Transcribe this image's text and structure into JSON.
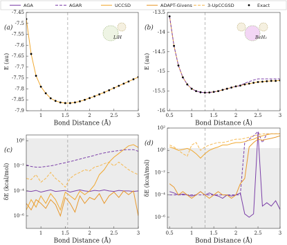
{
  "legend": [
    {
      "name": "AGA",
      "color": "#7b3fa8",
      "dash": false
    },
    {
      "name": "AGAR",
      "color": "#7b3fa8",
      "dash": true
    },
    {
      "name": "UCCSD",
      "color": "#f0a830",
      "dash": false
    },
    {
      "name": "ADAPT-Givens",
      "color": "#e8982a",
      "dash": false
    },
    {
      "name": "3-UpCCGSD",
      "color": "#f5b850",
      "dash": true
    },
    {
      "name": "Exact",
      "color": "#000000",
      "marker": true
    }
  ],
  "chart_data": [
    {
      "type": "line",
      "panel": "(a)",
      "annotation": "LiH",
      "ylabel": "E (au)",
      "xlabel": "Bond Distance (Å)",
      "log": false,
      "vline": 1.55,
      "xlim": [
        0.7,
        3
      ],
      "xticks": [
        1,
        1.5,
        2,
        2.5,
        3
      ],
      "ylim": [
        -7.9,
        -7.45
      ],
      "yticks": [
        -7.9,
        -7.85,
        -7.8,
        -7.75,
        -7.7,
        -7.65,
        -7.6,
        -7.55,
        -7.5,
        -7.45
      ],
      "x": [
        0.7,
        0.8,
        0.9,
        1.0,
        1.1,
        1.2,
        1.3,
        1.4,
        1.5,
        1.6,
        1.7,
        1.8,
        1.9,
        2.0,
        2.1,
        2.2,
        2.3,
        2.4,
        2.5,
        2.6,
        2.7,
        2.8,
        2.9,
        3.0
      ],
      "series": [
        {
          "name": "UCCSD",
          "color": "#f0a830",
          "dash": false,
          "values": [
            -7.48,
            -7.64,
            -7.74,
            -7.79,
            -7.82,
            -7.843,
            -7.855,
            -7.862,
            -7.865,
            -7.865,
            -7.862,
            -7.857,
            -7.85,
            -7.842,
            -7.834,
            -7.825,
            -7.816,
            -7.806,
            -7.796,
            -7.786,
            -7.776,
            -7.766,
            -7.756,
            -7.746
          ]
        },
        {
          "name": "Exact",
          "color": "#000000",
          "marker": true,
          "values": [
            -7.48,
            -7.64,
            -7.74,
            -7.79,
            -7.82,
            -7.843,
            -7.855,
            -7.862,
            -7.865,
            -7.865,
            -7.862,
            -7.857,
            -7.85,
            -7.842,
            -7.834,
            -7.825,
            -7.816,
            -7.806,
            -7.796,
            -7.786,
            -7.776,
            -7.766,
            -7.756,
            -7.746
          ]
        }
      ]
    },
    {
      "type": "line",
      "panel": "(b)",
      "annotation": "BeH₂",
      "ylabel": "E (au)",
      "xlabel": "Bond Distance (Å)",
      "log": false,
      "vline": 1.3,
      "xlim": [
        0.45,
        3
      ],
      "xticks": [
        0.5,
        1,
        1.5,
        2,
        2.5,
        3
      ],
      "ylim": [
        -16,
        -13.5
      ],
      "yticks": [
        -16,
        -15.5,
        -15,
        -14.5,
        -14,
        -13.5
      ],
      "x": [
        0.5,
        0.6,
        0.7,
        0.8,
        0.9,
        1.0,
        1.1,
        1.2,
        1.3,
        1.4,
        1.5,
        1.6,
        1.7,
        1.8,
        1.9,
        2.0,
        2.1,
        2.2,
        2.3,
        2.4,
        2.5,
        2.6,
        2.7,
        2.8,
        2.9,
        3.0
      ],
      "series": [
        {
          "name": "UCCSD",
          "color": "#f0a830",
          "dash": false,
          "values": [
            -13.6,
            -14.35,
            -14.85,
            -15.15,
            -15.33,
            -15.44,
            -15.5,
            -15.53,
            -15.54,
            -15.535,
            -15.52,
            -15.5,
            -15.47,
            -15.44,
            -15.41,
            -15.38,
            -15.36,
            -15.33,
            -15.31,
            -15.29,
            -15.27,
            -15.26,
            -15.25,
            -15.24,
            -15.24,
            -15.23
          ]
        },
        {
          "name": "AGAR",
          "color": "#7b3fa8",
          "dash": true,
          "values": [
            -13.6,
            -14.35,
            -14.85,
            -15.15,
            -15.33,
            -15.44,
            -15.5,
            -15.53,
            -15.54,
            -15.535,
            -15.52,
            -15.5,
            -15.47,
            -15.44,
            -15.41,
            -15.38,
            -15.36,
            -15.3,
            -15.26,
            -15.22,
            -15.19,
            -15.19,
            -15.19,
            -15.19,
            -15.19,
            -15.19
          ]
        },
        {
          "name": "Exact",
          "color": "#000000",
          "marker": true,
          "values": [
            -13.6,
            -14.35,
            -14.85,
            -15.15,
            -15.33,
            -15.44,
            -15.5,
            -15.53,
            -15.54,
            -15.535,
            -15.52,
            -15.5,
            -15.47,
            -15.44,
            -15.41,
            -15.38,
            -15.36,
            -15.33,
            -15.31,
            -15.29,
            -15.27,
            -15.26,
            -15.25,
            -15.24,
            -15.24,
            -15.23
          ]
        }
      ]
    },
    {
      "type": "line",
      "panel": "(c)",
      "ylabel": "δE (kcal/mol)",
      "xlabel": "Bond Distance (Å)",
      "log": true,
      "vline": 1.55,
      "shade_below": 1.6,
      "xlim": [
        0.7,
        3
      ],
      "xticks": [
        1,
        1.5,
        2,
        2.5,
        3
      ],
      "ylim": [
        1e-07,
        3
      ],
      "yticks": [
        {
          "value": 1e-06,
          "label": "10⁻⁶"
        },
        {
          "value": 0.0001,
          "label": "10⁻⁴"
        },
        {
          "value": 0.01,
          "label": "10⁻²"
        },
        {
          "value": 1,
          "label": "10⁰"
        }
      ],
      "x": [
        0.7,
        0.8,
        0.9,
        1.0,
        1.1,
        1.2,
        1.3,
        1.4,
        1.5,
        1.6,
        1.7,
        1.8,
        1.9,
        2.0,
        2.1,
        2.2,
        2.3,
        2.4,
        2.5,
        2.6,
        2.7,
        2.8,
        2.9,
        3.0
      ],
      "series": [
        {
          "name": "AGA",
          "color": "#7b3fa8",
          "dash": false,
          "values": [
            0.0001,
            9e-05,
            0.00011,
            8e-05,
            0.0001,
            0.00012,
            9e-05,
            0.0001,
            0.00011,
            8e-05,
            0.0001,
            0.00012,
            0.0001,
            9e-05,
            0.00011,
            0.0001,
            0.00012,
            0.0001,
            9e-05,
            0.00011,
            0.0001,
            0.0001,
            9e-05,
            0.0001
          ]
        },
        {
          "name": "AGAR",
          "color": "#7b3fa8",
          "dash": true,
          "values": [
            0.012,
            0.009,
            0.008,
            0.008,
            0.009,
            0.01,
            0.012,
            0.015,
            0.018,
            0.022,
            0.028,
            0.035,
            0.045,
            0.055,
            0.07,
            0.09,
            0.11,
            0.13,
            0.15,
            0.17,
            0.19,
            0.2,
            0.2,
            0.15
          ]
        },
        {
          "name": "UCCSD",
          "color": "#f0a830",
          "dash": false,
          "values": [
            3e-06,
            2e-05,
            5e-06,
            4e-05,
            1e-05,
            6e-05,
            2e-05,
            3e-06,
            8e-05,
            4e-05,
            2e-05,
            0.0001,
            5e-05,
            0.0001,
            0.0003,
            0.002,
            0.005,
            0.02,
            0.05,
            0.1,
            0.2,
            0.4,
            0.5,
            0.3
          ]
        },
        {
          "name": "3-UpCCGSD",
          "color": "#f5b850",
          "dash": true,
          "values": [
            0.001,
            0.0008,
            0.002,
            0.0005,
            0.001,
            0.003,
            0.001,
            0.0005,
            0.0002,
            0.001,
            0.002,
            0.003,
            0.005,
            0.004,
            0.008,
            0.01,
            0.015,
            0.02,
            0.01,
            0.02,
            0.01,
            0.005,
            0.003,
            0.002
          ]
        },
        {
          "name": "ADAPT-Givens",
          "color": "#e8982a",
          "dash": false,
          "values": [
            1e-05,
            3e-06,
            2e-05,
            1e-05,
            4e-06,
            2e-05,
            8e-06,
            1e-06,
            3e-05,
            1e-05,
            2e-06,
            4e-05,
            1e-05,
            3e-05,
            2e-05,
            6e-05,
            1e-05,
            4e-05,
            8e-05,
            3e-05,
            0.0001,
            5e-05,
            0.0001,
            1e-06
          ]
        }
      ]
    },
    {
      "type": "line",
      "panel": "(d)",
      "ylabel": "δE (kcal/mol)",
      "xlabel": "Bond Distance (Å)",
      "log": true,
      "vline": 1.3,
      "shade_below": 1.6,
      "xlim": [
        0.45,
        3
      ],
      "xticks": [
        0.5,
        1,
        1.5,
        2,
        2.5,
        3
      ],
      "ylim": [
        1e-07,
        100
      ],
      "yticks": [
        {
          "value": 1e-06,
          "label": "10⁻⁶"
        },
        {
          "value": 0.0001,
          "label": "10⁻⁴"
        },
        {
          "value": 0.01,
          "label": "10⁻²"
        },
        {
          "value": 1,
          "label": "10⁰"
        },
        {
          "value": 100,
          "label": "10²"
        }
      ],
      "x": [
        0.5,
        0.6,
        0.7,
        0.8,
        0.9,
        1.0,
        1.1,
        1.2,
        1.3,
        1.4,
        1.5,
        1.6,
        1.7,
        1.8,
        1.9,
        2.0,
        2.1,
        2.2,
        2.3,
        2.4,
        2.5,
        2.6,
        2.7,
        2.8,
        2.9,
        3.0
      ],
      "series": [
        {
          "name": "AGA",
          "color": "#7b3fa8",
          "dash": false,
          "values": [
            0.0002,
            0.00015,
            0.0001,
            0.00012,
            0.0001,
            8e-05,
            0.0001,
            0.0002,
            0.0001,
            0.00015,
            0.0001,
            8e-05,
            5e-05,
            0.0001,
            8e-05,
            0.0001,
            0.00015,
            2e-06,
            1e-06,
            2e-06,
            40,
            1e-05,
            2e-05,
            1e-05,
            3e-05,
            5e-06
          ]
        },
        {
          "name": "AGAR",
          "color": "#7b3fa8",
          "dash": true,
          "values": [
            0.0001,
            0.0001,
            0.0001,
            0.0001,
            0.0001,
            0.0001,
            0.0001,
            0.0001,
            0.0001,
            0.0001,
            0.0001,
            0.0001,
            0.0001,
            0.0001,
            0.0001,
            0.0001,
            0.0001,
            5,
            10,
            20,
            50,
            5,
            30,
            30,
            30,
            30
          ]
        },
        {
          "name": "UCCSD",
          "color": "#f0a830",
          "dash": false,
          "values": [
            2,
            1.5,
            1,
            1.2,
            1.5,
            1,
            0.5,
            0.2,
            0.5,
            1,
            1.5,
            2,
            3,
            3,
            4,
            5,
            5,
            6,
            8,
            10,
            15,
            20,
            25,
            30,
            30,
            30
          ]
        },
        {
          "name": "3-UpCCGSD",
          "color": "#f5b850",
          "dash": true,
          "values": [
            3,
            2,
            1,
            0.5,
            0.3,
            3,
            5,
            1,
            2,
            3,
            4,
            5,
            5,
            6,
            8,
            10,
            10,
            12,
            15,
            20,
            25,
            30,
            30,
            30,
            30,
            30
          ]
        },
        {
          "name": "ADAPT-Givens",
          "color": "#e8982a",
          "dash": false,
          "values": [
            0.001,
            0.0005,
            0.0001,
            0.0002,
            0.0001,
            5e-05,
            0.0001,
            0.0002,
            0.0001,
            5e-05,
            0.0001,
            0.0002,
            0.0001,
            0.0001,
            5e-05,
            0.0001,
            0.001,
            0.003,
            2,
            5,
            10,
            8,
            10,
            12,
            15,
            20
          ]
        }
      ]
    }
  ]
}
